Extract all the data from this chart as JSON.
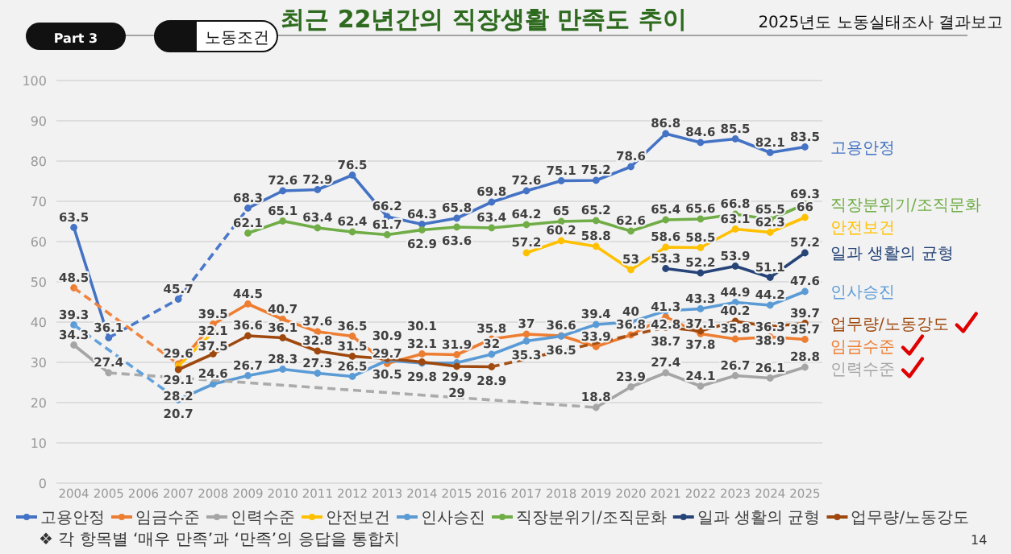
{
  "chart_data": {
    "type": "line",
    "title": "최근 22년간의 직장생활 만족도 추이",
    "subtitle": "2025년도 노동실태조사 결과보고",
    "annotations": [
      "Part 3",
      "노동조건",
      "❖ 각 항목별 ‘매우 만족’과 ‘만족’의 응답을 통합치",
      "14"
    ],
    "x": [
      2004,
      2005,
      2006,
      2007,
      2008,
      2009,
      2010,
      2011,
      2012,
      2013,
      2014,
      2015,
      2016,
      2017,
      2018,
      2019,
      2020,
      2021,
      2022,
      2023,
      2024,
      2025
    ],
    "xlim": [
      2003.5,
      2025.5
    ],
    "xticks": [
      2004,
      2005,
      2006,
      2007,
      2008,
      2009,
      2010,
      2011,
      2012,
      2013,
      2014,
      2015,
      2016,
      2017,
      2018,
      2019,
      2020,
      2021,
      2022,
      2023,
      2024,
      2025
    ],
    "ylim": [
      0,
      100
    ],
    "yticks": [
      0,
      10,
      20,
      30,
      40,
      50,
      60,
      70,
      80,
      90,
      100
    ],
    "grid": "y",
    "legend": "bottom",
    "marker": "circle",
    "data_labels": true,
    "series": [
      {
        "name": "고용안정",
        "color": "#4472c4",
        "values": [
          63.5,
          36.1,
          null,
          45.7,
          null,
          68.3,
          72.6,
          72.9,
          76.5,
          66.2,
          64.3,
          65.8,
          69.8,
          72.6,
          75.1,
          75.2,
          78.6,
          86.8,
          84.6,
          85.5,
          82.1,
          83.5
        ]
      },
      {
        "name": "임금수준",
        "color": "#ed7d31",
        "values": [
          48.5,
          null,
          null,
          29.6,
          39.5,
          44.5,
          40.7,
          37.6,
          36.5,
          29.7,
          32.1,
          31.9,
          35.8,
          37,
          36.6,
          33.9,
          36.8,
          41.3,
          37.1,
          35.8,
          36.3,
          35.7
        ]
      },
      {
        "name": "인력수준",
        "color": "#a5a5a5",
        "values": [
          34.3,
          27.4,
          null,
          null,
          null,
          null,
          null,
          null,
          null,
          null,
          null,
          null,
          null,
          null,
          null,
          18.8,
          23.9,
          27.4,
          24.1,
          26.7,
          26.1,
          28.8
        ]
      },
      {
        "name": "안전보건",
        "color": "#ffc000",
        "values": [
          null,
          null,
          null,
          29.1,
          37.5,
          null,
          null,
          null,
          null,
          null,
          null,
          null,
          null,
          57.2,
          60.2,
          58.8,
          53,
          58.6,
          58.5,
          63.1,
          62.3,
          66
        ]
      },
      {
        "name": "인사승진",
        "color": "#5b9bd5",
        "values": [
          39.3,
          null,
          null,
          20.7,
          24.6,
          26.7,
          28.3,
          27.3,
          26.5,
          30.5,
          29.8,
          29.9,
          32,
          35.3,
          36.5,
          39.4,
          40,
          42.8,
          43.3,
          44.9,
          44.2,
          47.6
        ]
      },
      {
        "name": "직장분위기/조직문화",
        "color": "#70ad47",
        "values": [
          null,
          null,
          null,
          null,
          null,
          62.1,
          65.1,
          63.4,
          62.4,
          61.7,
          62.9,
          63.6,
          63.4,
          64.2,
          65,
          65.2,
          62.6,
          65.4,
          65.6,
          66.8,
          65.5,
          69.3
        ]
      },
      {
        "name": "일과 생활의 균형",
        "color": "#264478",
        "values": [
          null,
          null,
          null,
          null,
          null,
          null,
          null,
          null,
          null,
          null,
          null,
          null,
          null,
          null,
          null,
          null,
          null,
          53.3,
          52.2,
          53.9,
          51.1,
          57.2
        ]
      },
      {
        "name": "업무량/노동강도",
        "color": "#9e480e",
        "values": [
          null,
          null,
          null,
          28.2,
          32.1,
          36.6,
          36.1,
          32.8,
          31.5,
          30.9,
          30.1,
          29,
          28.9,
          null,
          null,
          null,
          null,
          38.7,
          37.8,
          40.2,
          38.9,
          39.7
        ]
      },
      {
        "color": "#4a78ca",
        "line_style": "dashed",
        "marker": "none",
        "data_labels": false,
        "x": [
          2005,
          2007,
          2009
        ],
        "values": [
          36.1,
          45.7,
          68.3
        ]
      },
      {
        "color": "#f08540",
        "line_style": "dashed",
        "marker": "none",
        "data_labels": false,
        "x": [
          2004,
          2007
        ],
        "values": [
          48.5,
          29.6
        ]
      },
      {
        "color": "#ababab",
        "line_style": "dashed",
        "marker": "none",
        "data_labels": false,
        "x": [
          2005,
          2019
        ],
        "values": [
          27.4,
          18.8
        ]
      },
      {
        "color": "#62a2dc",
        "line_style": "dashed",
        "marker": "none",
        "data_labels": false,
        "x": [
          2004,
          2007
        ],
        "values": [
          39.3,
          20.7
        ]
      },
      {
        "color": "#a55016",
        "line_style": "dashed",
        "marker": "none",
        "data_labels": false,
        "x": [
          2016,
          2021
        ],
        "values": [
          28.9,
          38.7
        ]
      }
    ]
  }
}
